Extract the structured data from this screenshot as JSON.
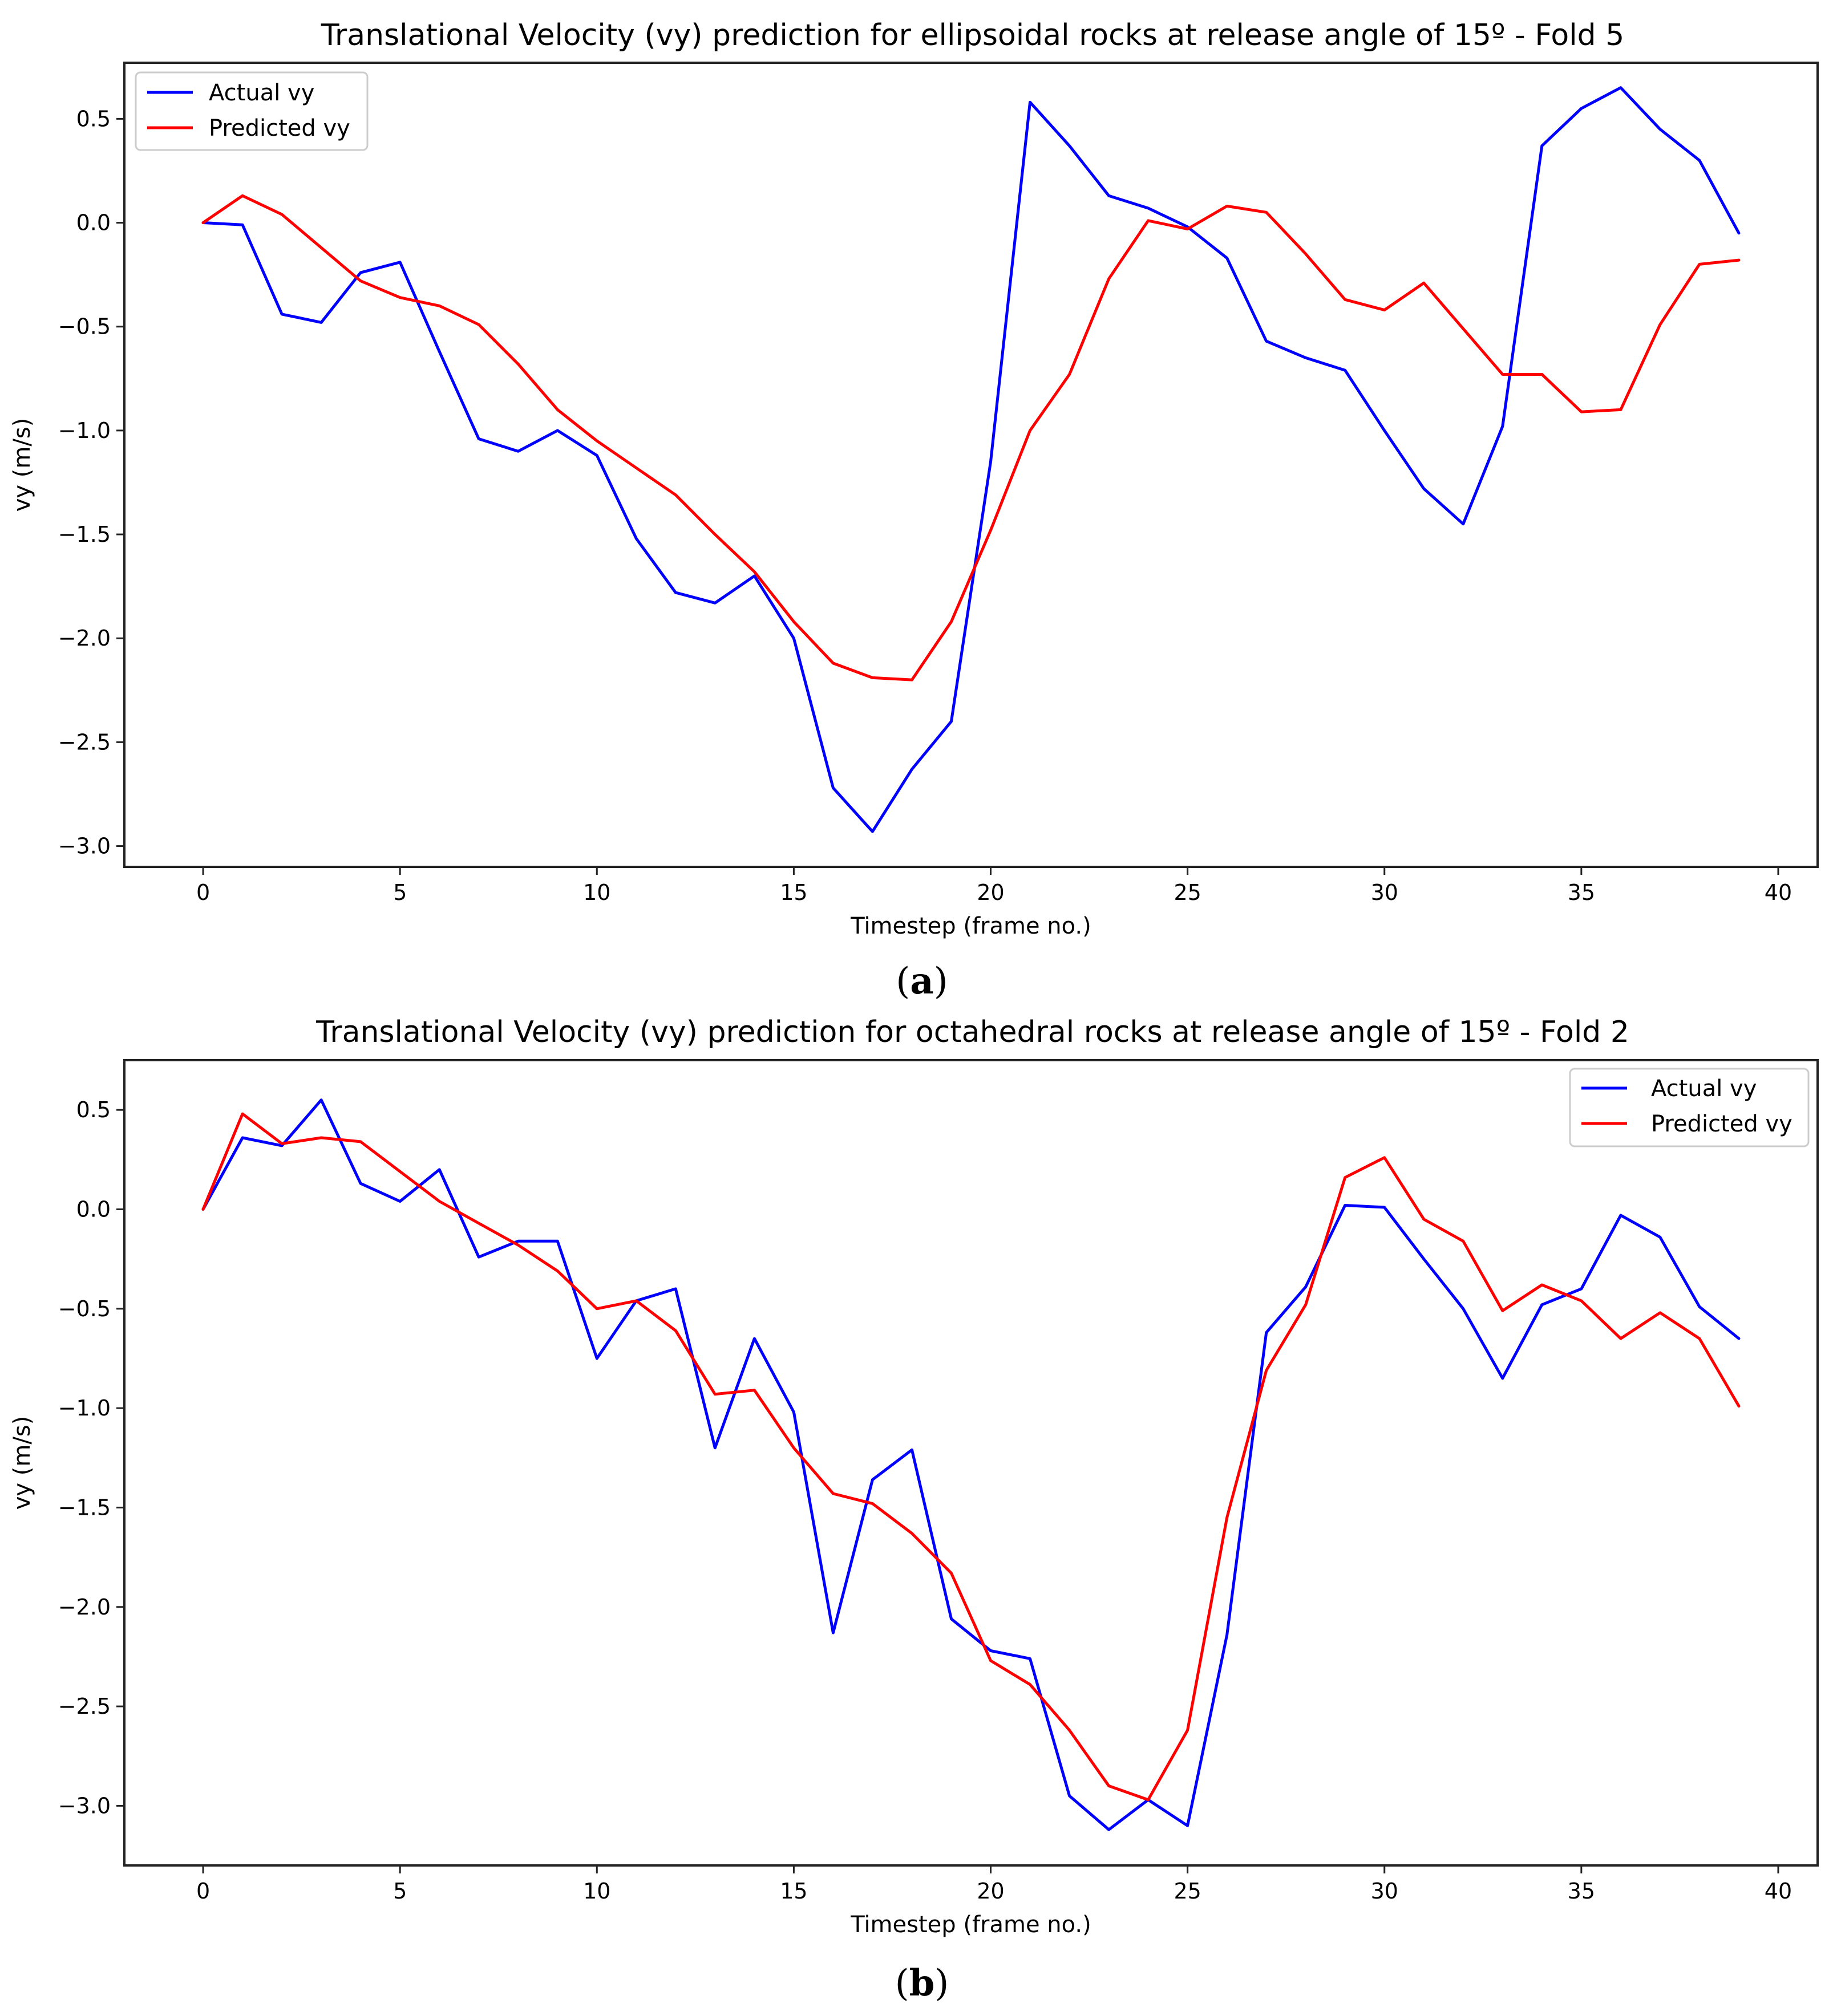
{
  "chart_data": [
    {
      "type": "line",
      "panel_label": "a",
      "title": "Translational Velocity (vy) prediction for ellipsoidal rocks at release angle of 15º - Fold 5",
      "xlabel": "Timestep (frame no.)",
      "ylabel": "vy (m/s)",
      "xlim": [
        -2,
        41
      ],
      "ylim": [
        -3.1,
        0.77
      ],
      "xticks": [
        0,
        5,
        10,
        15,
        20,
        25,
        30,
        35,
        40
      ],
      "yticks": [
        0.5,
        0.0,
        -0.5,
        -1.0,
        -1.5,
        -2.0,
        -2.5,
        -3.0
      ],
      "ytick_labels": [
        "0.5",
        "0.0",
        "−0.5",
        "−1.0",
        "−1.5",
        "−2.0",
        "−2.5",
        "−3.0"
      ],
      "legend_position": "upper-left",
      "x": [
        0,
        1,
        2,
        3,
        4,
        5,
        6,
        7,
        8,
        9,
        10,
        11,
        12,
        13,
        14,
        15,
        16,
        17,
        18,
        19,
        20,
        21,
        22,
        23,
        24,
        25,
        26,
        27,
        28,
        29,
        30,
        31,
        32,
        33,
        34,
        35,
        36,
        37,
        38,
        39
      ],
      "series": [
        {
          "name": "Actual vy",
          "color": "#0000ff",
          "values": [
            0.0,
            -0.01,
            -0.44,
            -0.48,
            -0.24,
            -0.19,
            -0.62,
            -1.04,
            -1.1,
            -1.0,
            -1.12,
            -1.52,
            -1.78,
            -1.83,
            -1.7,
            -2.0,
            -2.72,
            -2.93,
            -2.63,
            -2.4,
            -1.15,
            0.58,
            0.37,
            0.13,
            0.07,
            -0.02,
            -0.17,
            -0.57,
            -0.65,
            -0.71,
            -1.0,
            -1.28,
            -1.45,
            -0.98,
            0.37,
            0.55,
            0.65,
            0.45,
            0.3,
            -0.05
          ]
        },
        {
          "name": "Predicted vy",
          "color": "#ff0000",
          "values": [
            0.0,
            0.13,
            0.04,
            -0.12,
            -0.28,
            -0.36,
            -0.4,
            -0.49,
            -0.68,
            -0.9,
            -1.05,
            -1.18,
            -1.31,
            -1.5,
            -1.68,
            -1.92,
            -2.12,
            -2.19,
            -2.2,
            -1.92,
            -1.48,
            -1.0,
            -0.73,
            -0.27,
            0.01,
            -0.03,
            0.08,
            0.05,
            -0.15,
            -0.37,
            -0.42,
            -0.29,
            -0.51,
            -0.73,
            -0.73,
            -0.91,
            -0.9,
            -0.49,
            -0.2,
            -0.18
          ]
        }
      ]
    },
    {
      "type": "line",
      "panel_label": "b",
      "title": "Translational Velocity (vy) prediction for octahedral rocks at release angle of 15º - Fold 2",
      "xlabel": "Timestep (frame no.)",
      "ylabel": "vy (m/s)",
      "xlim": [
        -2,
        41
      ],
      "ylim": [
        -3.3,
        0.75
      ],
      "xticks": [
        0,
        5,
        10,
        15,
        20,
        25,
        30,
        35,
        40
      ],
      "yticks": [
        0.5,
        0.0,
        -0.5,
        -1.0,
        -1.5,
        -2.0,
        -2.5,
        -3.0
      ],
      "ytick_labels": [
        "0.5",
        "0.0",
        "−0.5",
        "−1.0",
        "−1.5",
        "−2.0",
        "−2.5",
        "−3.0"
      ],
      "legend_position": "upper-right",
      "x": [
        0,
        1,
        2,
        3,
        4,
        5,
        6,
        7,
        8,
        9,
        10,
        11,
        12,
        13,
        14,
        15,
        16,
        17,
        18,
        19,
        20,
        21,
        22,
        23,
        24,
        25,
        26,
        27,
        28,
        29,
        30,
        31,
        32,
        33,
        34,
        35,
        36,
        37,
        38,
        39
      ],
      "series": [
        {
          "name": "Actual vy",
          "color": "#0000ff",
          "values": [
            0.0,
            0.36,
            0.32,
            0.55,
            0.13,
            0.04,
            0.2,
            -0.24,
            -0.16,
            -0.16,
            -0.75,
            -0.46,
            -0.4,
            -1.2,
            -0.65,
            -1.02,
            -2.13,
            -1.36,
            -1.21,
            -2.06,
            -2.22,
            -2.26,
            -2.95,
            -3.12,
            -2.97,
            -3.1,
            -2.14,
            -0.62,
            -0.39,
            0.02,
            0.01,
            -0.25,
            -0.5,
            -0.85,
            -0.48,
            -0.4,
            -0.03,
            -0.14,
            -0.49,
            -0.65
          ]
        },
        {
          "name": "Predicted vy",
          "color": "#ff0000",
          "values": [
            0.0,
            0.48,
            0.33,
            0.36,
            0.34,
            0.19,
            0.04,
            -0.07,
            -0.18,
            -0.31,
            -0.5,
            -0.46,
            -0.61,
            -0.93,
            -0.91,
            -1.2,
            -1.43,
            -1.48,
            -1.63,
            -1.83,
            -2.27,
            -2.39,
            -2.62,
            -2.9,
            -2.97,
            -2.62,
            -1.55,
            -0.81,
            -0.48,
            0.16,
            0.26,
            -0.05,
            -0.16,
            -0.51,
            -0.38,
            -0.46,
            -0.65,
            -0.52,
            -0.65,
            -0.99
          ]
        }
      ]
    }
  ]
}
